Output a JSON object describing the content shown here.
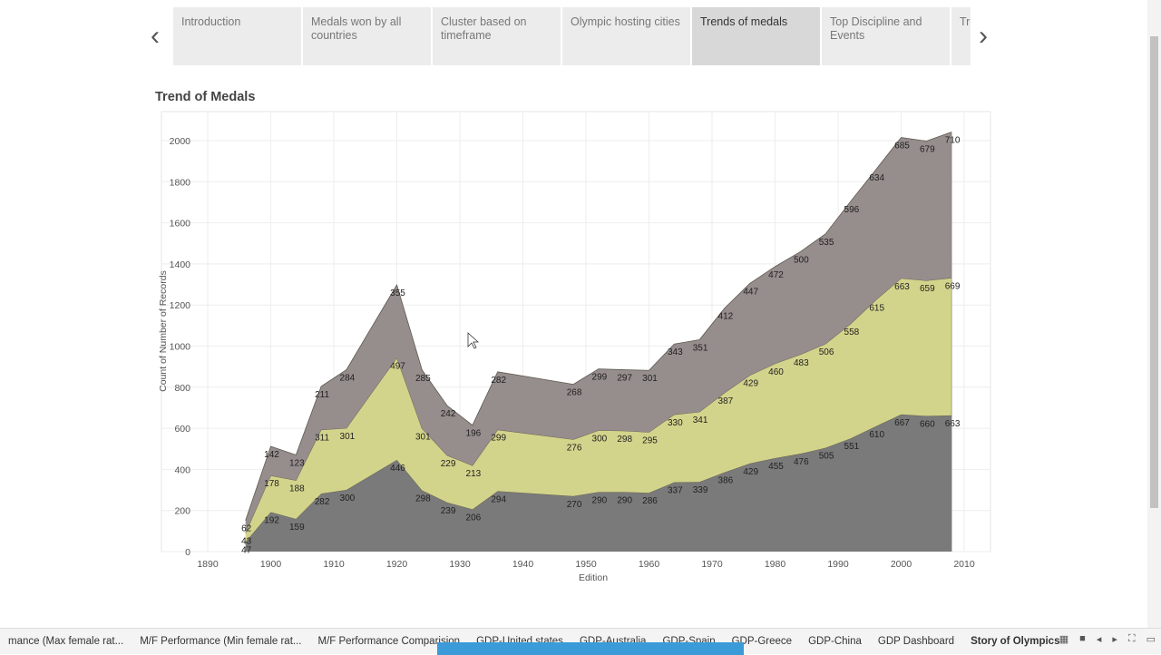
{
  "story": {
    "tabs": [
      "Introduction",
      "Medals won by all countries",
      "Cluster based on timeframe",
      "Olympic hosting cities",
      "Trends of medals",
      "Top Discipline and Events",
      "Tre"
    ],
    "active_tab": 4,
    "prev_icon": "chevron-left-icon",
    "next_icon": "chevron-right-icon"
  },
  "sheet_title": "Trend of Medals",
  "chart_data": {
    "type": "area",
    "stacked": true,
    "xlabel": "Edition",
    "ylabel": "Count of Number of Records",
    "xlim": [
      1888,
      2012
    ],
    "ylim": [
      0,
      2150
    ],
    "xticks": [
      1890,
      1900,
      1910,
      1920,
      1930,
      1940,
      1950,
      1960,
      1970,
      1980,
      1990,
      2000,
      2010
    ],
    "yticks": [
      0,
      200,
      400,
      600,
      800,
      1000,
      1200,
      1400,
      1600,
      1800,
      2000
    ],
    "grid": true,
    "x": [
      1896,
      1900,
      1904,
      1908,
      1912,
      1920,
      1924,
      1928,
      1932,
      1936,
      1948,
      1952,
      1956,
      1960,
      1964,
      1968,
      1972,
      1976,
      1980,
      1984,
      1988,
      1992,
      1996,
      2000,
      2004,
      2008
    ],
    "series": [
      {
        "color": "#7a7a7a",
        "values": [
          47,
          192,
          159,
          282,
          300,
          446,
          298,
          239,
          206,
          294,
          270,
          290,
          290,
          286,
          337,
          339,
          386,
          429,
          455,
          476,
          505,
          551,
          610,
          667,
          660,
          663
        ]
      },
      {
        "color": "#d3d48b",
        "values": [
          43,
          178,
          188,
          311,
          301,
          497,
          301,
          229,
          213,
          299,
          276,
          300,
          298,
          295,
          330,
          341,
          387,
          429,
          460,
          483,
          506,
          558,
          615,
          663,
          659,
          669
        ]
      },
      {
        "color": "#968d8d",
        "values": [
          62,
          142,
          123,
          211,
          284,
          355,
          285,
          242,
          196,
          282,
          268,
          299,
          297,
          301,
          343,
          351,
          412,
          447,
          472,
          500,
          535,
          596,
          634,
          685,
          679,
          710
        ]
      }
    ]
  },
  "bottom_sheets": [
    "mance (Max female rat...",
    "M/F Performance (Min female rat...",
    "M/F Performance Comparision",
    "GDP-United states",
    "GDP-Australia",
    "GDP-Spain",
    "GDP-Greece",
    "GDP-China",
    "GDP Dashboard",
    "Story of Olympics"
  ],
  "active_sheet": 9
}
